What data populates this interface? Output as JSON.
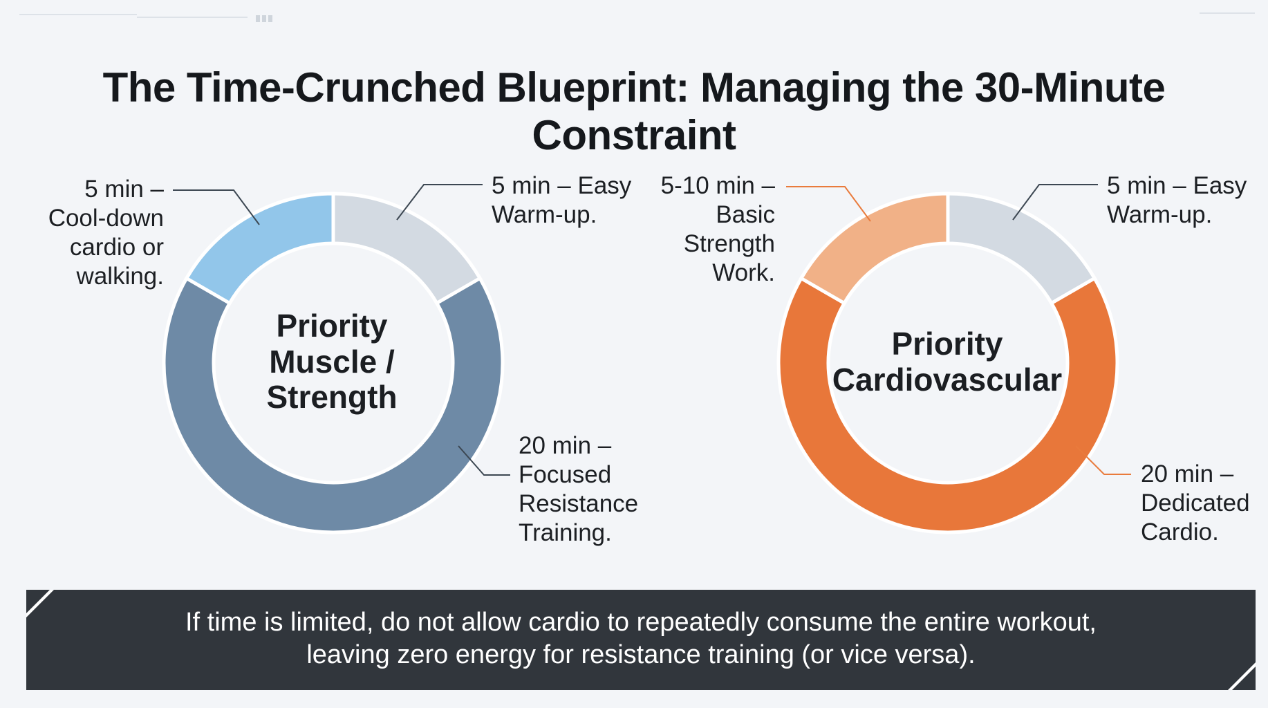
{
  "title": "The Time-Crunched Blueprint: Managing the 30-Minute Constraint",
  "colors": {
    "background": "#f3f5f8",
    "banner": "#31363c",
    "leader_line_strength": "#3c4752",
    "leader_line_cardio": "#e97b3c"
  },
  "chart_data": [
    {
      "type": "pie",
      "variant": "donut",
      "center_label": [
        "Priority",
        "Muscle /",
        "Strength"
      ],
      "slices": [
        {
          "label_lines": [
            "5 min –",
            "Easy",
            "Warm-up."
          ],
          "value": 5,
          "color": "#d3dae2"
        },
        {
          "label_lines": [
            "20 min –",
            "Focused",
            "Resistance",
            "Training."
          ],
          "value": 20,
          "color": "#6e8aa6"
        },
        {
          "label_lines": [
            "5 min –",
            "Cool-down",
            "cardio or",
            "walking."
          ],
          "value": 5,
          "color": "#92c6ea"
        }
      ]
    },
    {
      "type": "pie",
      "variant": "donut",
      "center_label": [
        "Priority",
        "Cardiovascular"
      ],
      "slices": [
        {
          "label_lines": [
            "5 min –",
            "Easy",
            "Warm-up."
          ],
          "value": 5,
          "color": "#d3dae2"
        },
        {
          "label_lines": [
            "20 min –",
            "Dedicated",
            "Cardio."
          ],
          "value": 20,
          "color": "#e8773a"
        },
        {
          "label_lines": [
            "5-10 min –",
            "Basic",
            "Strength",
            "Work."
          ],
          "value": 5,
          "color": "#f1b187"
        }
      ]
    }
  ],
  "callout_text": {
    "strength_warmup": [
      "5 min – Easy",
      "Warm-up."
    ],
    "strength_resistance": [
      "20 min –",
      "Focused",
      "Resistance",
      "Training."
    ],
    "strength_cooldown": [
      "5 min –",
      "Cool-down",
      "cardio or",
      "walking."
    ],
    "cardio_strength": [
      "5-10 min –",
      "Basic",
      "Strength",
      "Work."
    ],
    "cardio_warmup": [
      "5 min – Easy",
      "Warm-up."
    ],
    "cardio_dedicated": [
      "20 min –",
      "Dedicated",
      "Cardio."
    ]
  },
  "banner": {
    "lines": [
      "If time is limited, do not allow cardio to repeatedly consume the entire workout,",
      "leaving zero energy for resistance training (or vice versa)."
    ]
  }
}
